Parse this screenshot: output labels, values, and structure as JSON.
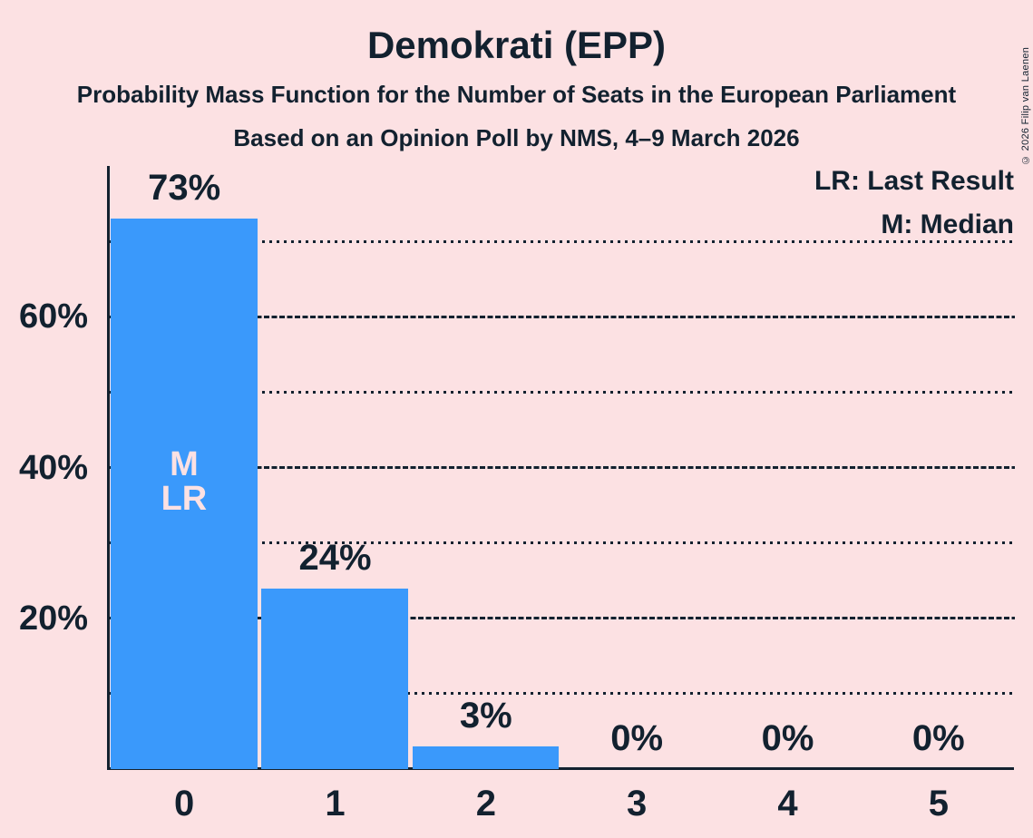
{
  "header": {
    "title": "Demokrati (EPP)",
    "subtitle_line1": "Probability Mass Function for the Number of Seats in the European Parliament",
    "subtitle_line2": "Based on an Opinion Poll by NMS, 4–9 March 2026"
  },
  "copyright": "© 2026 Filip van Laenen",
  "legend": {
    "lr_label": "LR: Last Result",
    "m_label": "M: Median"
  },
  "colors": {
    "background": "#FCE1E3",
    "bar": "#3A99FB",
    "text": "#12212F",
    "bar_annotation": "#FCE1E3"
  },
  "chart_data": {
    "type": "bar",
    "title": "Demokrati (EPP)",
    "categories": [
      "0",
      "1",
      "2",
      "3",
      "4",
      "5"
    ],
    "values": [
      73,
      24,
      3,
      0,
      0,
      0
    ],
    "value_labels": [
      "73%",
      "24%",
      "3%",
      "0%",
      "0%",
      "0%"
    ],
    "annotations": [
      {
        "category_index": 0,
        "lines": [
          "M",
          "LR"
        ]
      }
    ],
    "xlabel": "",
    "ylabel": "",
    "ylim": [
      0,
      80
    ],
    "yticks": [
      {
        "value": 20,
        "label": "20%"
      },
      {
        "value": 40,
        "label": "40%"
      },
      {
        "value": 60,
        "label": "60%"
      }
    ],
    "gridlines_dashed": [
      20,
      40,
      60
    ],
    "gridlines_dotted": [
      10,
      30,
      50,
      70
    ],
    "grid": true,
    "legend_position": "top-right"
  }
}
